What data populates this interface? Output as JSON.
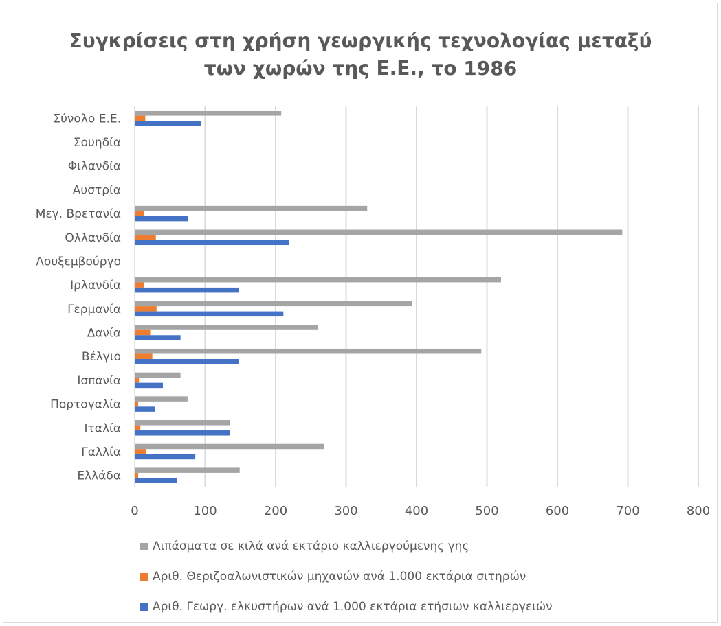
{
  "chart_data": {
    "type": "bar",
    "orientation": "horizontal",
    "title": "Συγκρίσεις στη χρήση γεωργικής τεχνολογίας μεταξύ των χωρών της Ε.Ε., το 1986",
    "title_lines": [
      "Συγκρίσεις στη χρήση γεωργικής τεχνολογίας μεταξύ",
      "των χωρών της Ε.Ε., το 1986"
    ],
    "categories": [
      "Σύνολο Ε.Ε.",
      "Σουηδία",
      "Φιλανδία",
      "Αυστρία",
      "Μεγ. Βρετανία",
      "Ολλανδία",
      "Λουξεμβούργο",
      "Ιρλανδία",
      "Γερμανία",
      "Δανία",
      "Βέλγιο",
      "Ισπανία",
      "Πορτογαλία",
      "Ιταλία",
      "Γαλλία",
      "Ελλάδα"
    ],
    "series": [
      {
        "name": "Λιπάσματα σε κιλά ανά εκτάριο καλλιεργούμενης γης",
        "color": "#a5a5a5",
        "values": [
          208,
          null,
          null,
          null,
          330,
          692,
          null,
          520,
          394,
          260,
          492,
          65,
          75,
          135,
          269,
          149
        ]
      },
      {
        "name": "Αριθ. Θεριζοαλωνιστικών μηχανών ανά 1.000 εκτάρια σιτηρών",
        "color": "#ed7d31",
        "values": [
          15,
          null,
          null,
          null,
          13,
          30,
          null,
          13,
          31,
          22,
          25,
          6,
          5,
          8,
          16,
          5
        ]
      },
      {
        "name": "Αριθ. Γεωργ. ελκυστήρων ανά 1.000 εκτάρια ετήσιων καλλιεργειών",
        "color": "#4472c4",
        "values": [
          94,
          null,
          null,
          null,
          76,
          219,
          null,
          148,
          211,
          65,
          148,
          40,
          29,
          135,
          86,
          60
        ]
      }
    ],
    "xlim": [
      0,
      800
    ],
    "xticks": [
      "0",
      "100",
      "200",
      "300",
      "400",
      "500",
      "600",
      "700",
      "800"
    ],
    "grid": true,
    "legend": "bottom"
  }
}
